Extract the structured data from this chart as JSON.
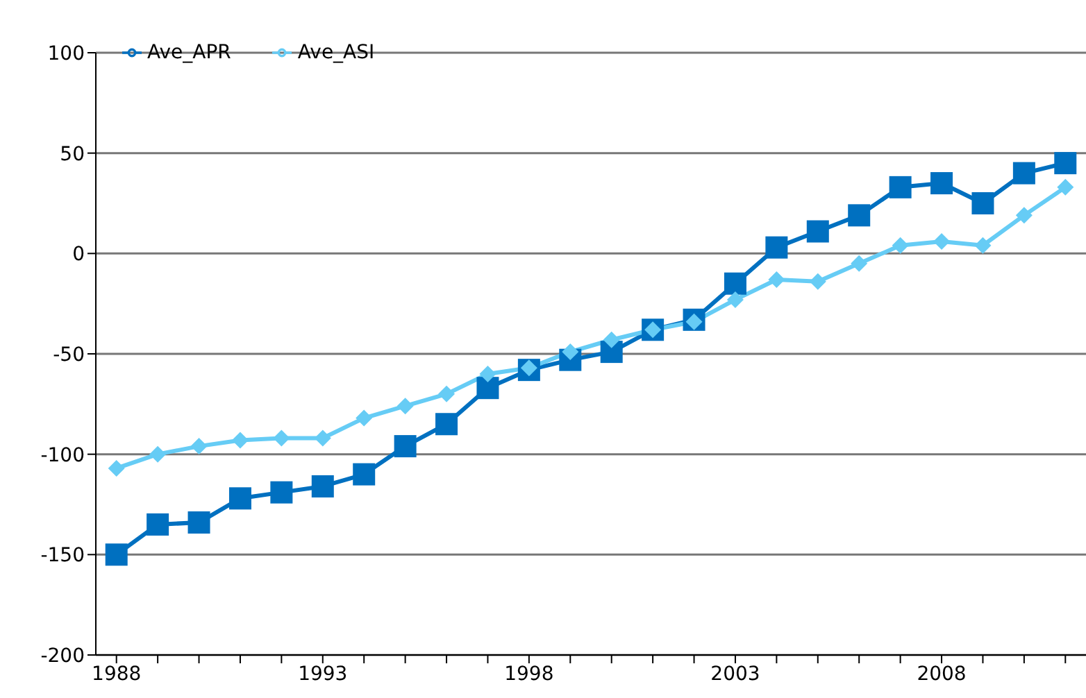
{
  "chart_data": {
    "type": "line",
    "categories": [
      "1988",
      null,
      null,
      null,
      null,
      "1993",
      null,
      null,
      null,
      null,
      "1998",
      null,
      null,
      null,
      null,
      "2003",
      null,
      null,
      null,
      null,
      "2008",
      null,
      null,
      null
    ],
    "series": [
      {
        "name": "Ave_APR",
        "color": "#0070c0",
        "marker": "square",
        "values": [
          -150,
          -135,
          -134,
          -122,
          -119,
          -116,
          -110,
          -96,
          -85,
          -67,
          -58,
          -53,
          -49,
          -38,
          -33,
          -15,
          3,
          11,
          19,
          33,
          35,
          25,
          40,
          45
        ]
      },
      {
        "name": "Ave_ASI",
        "color": "#66ccf5",
        "marker": "diamond",
        "values": [
          -107,
          -100,
          -96,
          -93,
          -92,
          -92,
          -82,
          -76,
          -70,
          -60,
          -57,
          -49,
          -43,
          -38,
          -34,
          -23,
          -13,
          -14,
          -5,
          4,
          6,
          4,
          19,
          33
        ]
      }
    ],
    "ylim": [
      -200,
      100
    ],
    "yticks": [
      -200,
      -150,
      -100,
      -50,
      0,
      50,
      100
    ],
    "grid": "y",
    "legend": "top left",
    "line_style": "solid"
  }
}
